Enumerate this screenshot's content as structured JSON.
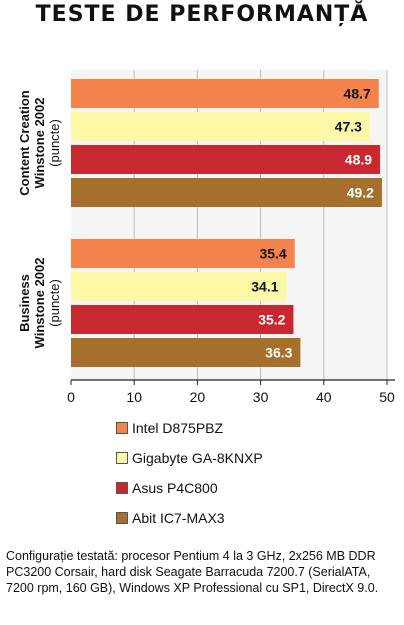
{
  "chart_data": {
    "type": "bar",
    "orientation": "horizontal",
    "title": "TESTE DE PERFORMANȚĂ",
    "categories": [
      {
        "lines": [
          "Content Creation",
          "Winstone 2002",
          "(puncte)"
        ]
      },
      {
        "lines": [
          "Business",
          "Winstone 2002",
          "(puncte)"
        ]
      }
    ],
    "series": [
      {
        "name": "Intel D875PBZ",
        "color": "#f4834b",
        "values": [
          48.7,
          35.4
        ],
        "labels": [
          "48.7",
          "35.4"
        ]
      },
      {
        "name": "Gigabyte GA-8KNXP",
        "color": "#fdf8a6",
        "values": [
          47.3,
          34.1
        ],
        "labels": [
          "47.3",
          "34.1"
        ]
      },
      {
        "name": "Asus P4C800",
        "color": "#c8282f",
        "values": [
          48.9,
          35.2
        ],
        "labels": [
          "48.9",
          "35.2"
        ]
      },
      {
        "name": "Abit IC7-MAX3",
        "color": "#a5702b",
        "values": [
          49.2,
          36.3
        ],
        "labels": [
          "49.2",
          "36.3"
        ]
      }
    ],
    "xlim": [
      0,
      50
    ],
    "xticks": [
      0,
      10,
      20,
      30,
      40,
      50
    ],
    "xtick_labels": [
      "0",
      "10",
      "20",
      "30",
      "40",
      "50"
    ],
    "grid": true,
    "legend_position": "bottom",
    "background_color": "#f5f5f5",
    "grid_color": "#bbbbbb"
  },
  "note": "Configurație testată:  procesor Pentium 4 la 3 GHz, 2x256 MB DDR PC3200 Corsair, hard disk Seagate Barracuda 7200.7 (SerialATA, 7200 rpm, 160 GB), Windows XP Professional cu SP1, DirectX 9.0."
}
